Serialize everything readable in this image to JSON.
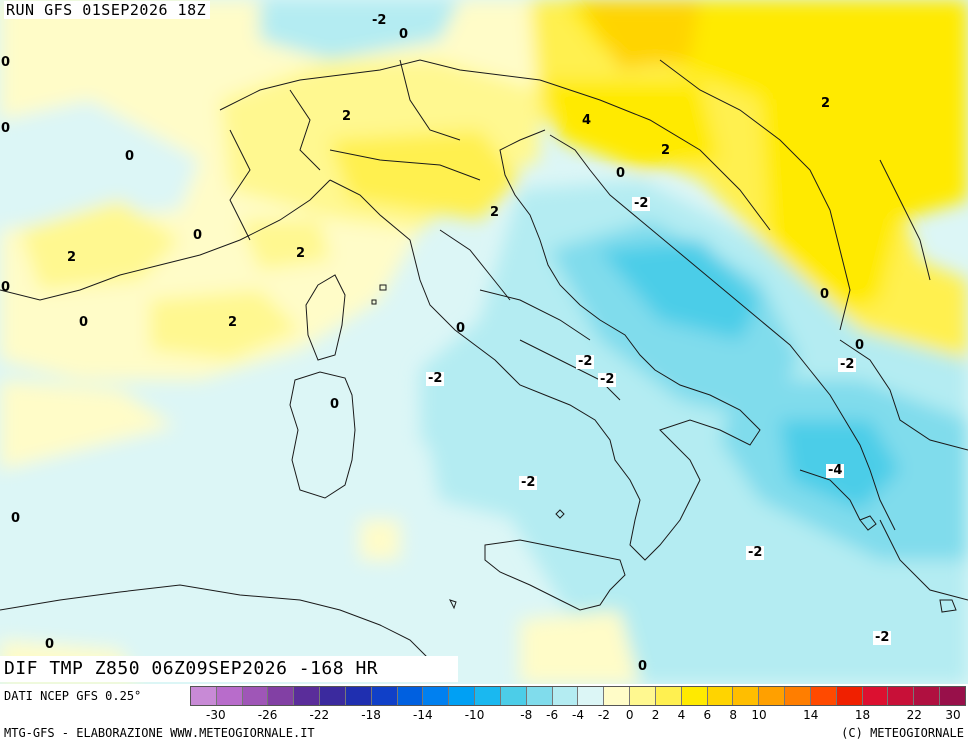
{
  "header": {
    "run_label": "RUN GFS 01SEP2026 18Z"
  },
  "map": {
    "title": "DIF TMP Z850 06Z09SEP2026 -168 HR",
    "iso_labels": [
      "-2",
      "0",
      "0",
      "0",
      "2",
      "4",
      "0",
      "2",
      "0",
      "2",
      "0",
      "-2",
      "2",
      "0",
      "2",
      "0",
      "2",
      "2",
      "0",
      "0",
      "0",
      "-2",
      "-2",
      "-2",
      "-2",
      "0",
      "-2",
      "0",
      "-2",
      "-4",
      "-2",
      "0",
      "-2",
      "0"
    ]
  },
  "legend": {
    "colors": [
      "#c88ad6",
      "#b86ccb",
      "#9f56b7",
      "#8240a4",
      "#5a2d9a",
      "#3b2a9e",
      "#1f2fb0",
      "#1040c8",
      "#0060e0",
      "#0080f0",
      "#00a0f4",
      "#1ab8f0",
      "#4ccde8",
      "#80dcec",
      "#b4ecf2",
      "#dcf6f6",
      "#fffcc8",
      "#fff890",
      "#fff050",
      "#ffea00",
      "#ffd400",
      "#ffbe00",
      "#ffa000",
      "#ff7e00",
      "#ff4a00",
      "#f02000",
      "#dc1030",
      "#c81038",
      "#b01040",
      "#98104a"
    ],
    "tick_labels": [
      "-30",
      "-26",
      "-22",
      "-18",
      "-14",
      "-10",
      "-8",
      "-6",
      "-4",
      "-2",
      "0",
      "2",
      "4",
      "6",
      "8",
      "10",
      "14",
      "18",
      "22",
      "30"
    ]
  },
  "footer": {
    "data_source": "DATI NCEP GFS 0.25°",
    "elaboration": "MTG-GFS - ELABORAZIONE WWW.METEOGIORNALE.IT",
    "copyright": "(C) METEOGIORNALE"
  }
}
